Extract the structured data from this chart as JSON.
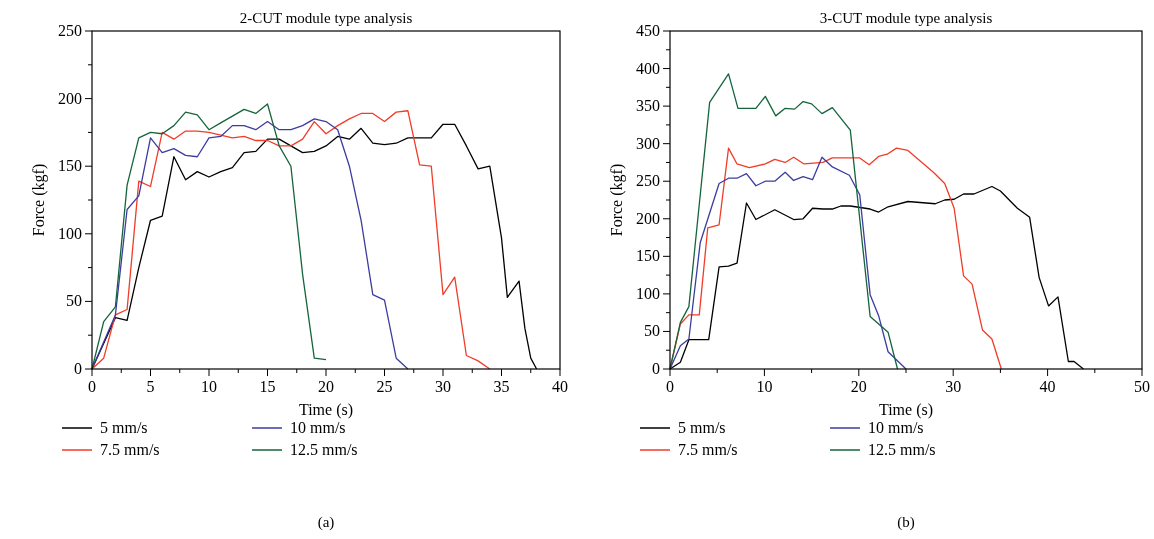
{
  "chart_data": [
    {
      "type": "line",
      "title": "2-CUT module type analysis",
      "xlabel": "Time (s)",
      "ylabel": "Force (kgf)",
      "xlim": [
        0,
        40
      ],
      "ylim": [
        0,
        250
      ],
      "xticks": [
        0,
        {
          "value": 2.5,
          "label": null
        },
        5,
        {
          "value": 7.5,
          "label": null
        },
        10,
        {
          "value": 12.5,
          "label": null
        },
        15,
        {
          "value": 17.5,
          "label": null
        },
        20,
        {
          "value": 22.5,
          "label": null
        },
        25,
        {
          "value": 27.5,
          "label": null
        },
        30,
        {
          "value": 32.5,
          "label": null
        },
        35,
        {
          "value": 37.5,
          "label": null
        },
        40
      ],
      "yticks": [
        0,
        {
          "value": 25,
          "label": null
        },
        50,
        {
          "value": 75,
          "label": null
        },
        100,
        {
          "value": 125,
          "label": null
        },
        150,
        {
          "value": 175,
          "label": null
        },
        200,
        {
          "value": 225,
          "label": null
        },
        250
      ],
      "grid": false,
      "legend": "bottom",
      "marker": "none",
      "line_style": "solid",
      "annotations": [
        "(a)"
      ],
      "series": [
        {
          "name": "5 mm/s",
          "color": "#000000",
          "x": [
            0,
            2,
            3,
            4,
            5,
            6,
            7,
            8,
            9,
            10,
            11,
            12,
            13,
            14,
            15,
            16,
            17,
            18,
            19,
            20,
            21,
            22,
            23,
            24,
            25,
            26,
            27,
            28,
            29,
            30,
            31,
            32,
            33,
            34,
            35,
            35.5,
            36.5,
            37,
            37.5,
            38
          ],
          "values": [
            0,
            38,
            36,
            75,
            110,
            113,
            157,
            140,
            146,
            142,
            146,
            149,
            160,
            161,
            170,
            170,
            165,
            160,
            161,
            165,
            172,
            170,
            178,
            167,
            166,
            167,
            171,
            171,
            171,
            181,
            181,
            165,
            148,
            150,
            97,
            53,
            65,
            30,
            8,
            0
          ]
        },
        {
          "name": "7.5 mm/s",
          "color": "#f03c28",
          "x": [
            0,
            1,
            2,
            3,
            4,
            5,
            6,
            7,
            8,
            9,
            10,
            11,
            12,
            13,
            14,
            15,
            16,
            17,
            18,
            19,
            20,
            21,
            22,
            23,
            24,
            25,
            26,
            27,
            28,
            29,
            30,
            31,
            32,
            33,
            34
          ],
          "values": [
            0,
            8,
            40,
            44,
            139,
            135,
            175,
            170,
            176,
            176,
            175,
            173,
            171,
            172,
            169,
            169,
            165,
            165,
            170,
            183,
            174,
            180,
            185,
            189,
            189,
            183,
            190,
            191,
            151,
            150,
            55,
            68,
            10,
            6,
            0
          ]
        },
        {
          "name": "10 mm/s",
          "color": "#3c3ca0",
          "x": [
            0,
            1,
            2,
            3,
            4,
            5,
            6,
            7,
            8,
            9,
            10,
            11,
            12,
            13,
            14,
            15,
            16,
            17,
            18,
            19,
            20,
            21,
            22,
            23,
            24,
            25,
            26,
            27
          ],
          "values": [
            0,
            20,
            40,
            118,
            128,
            171,
            160,
            163,
            158,
            157,
            171,
            172,
            180,
            180,
            177,
            183,
            177,
            177,
            180,
            185,
            183,
            177,
            150,
            110,
            55,
            51,
            8,
            0
          ]
        },
        {
          "name": "12.5 mm/s",
          "color": "#14643c",
          "x": [
            0,
            1,
            2,
            3,
            4,
            5,
            6,
            7,
            8,
            9,
            10,
            11,
            12,
            13,
            14,
            15,
            16,
            17,
            18,
            19,
            20
          ],
          "values": [
            0,
            35,
            46,
            136,
            171,
            175,
            174,
            180,
            190,
            188,
            177,
            182,
            187,
            192,
            189,
            196,
            165,
            150,
            70,
            8,
            7
          ]
        }
      ]
    },
    {
      "type": "line",
      "title": "3-CUT module type analysis",
      "xlabel": "Time (s)",
      "ylabel": "Force (kgf)",
      "xlim": [
        0,
        50
      ],
      "ylim": [
        0,
        450
      ],
      "xticks": [
        0,
        {
          "value": 5,
          "label": null
        },
        10,
        {
          "value": 15,
          "label": null
        },
        20,
        {
          "value": 25,
          "label": null
        },
        30,
        {
          "value": 35,
          "label": null
        },
        40,
        {
          "value": 45,
          "label": null
        },
        50
      ],
      "yticks": [
        0,
        {
          "value": 25,
          "label": null
        },
        50,
        {
          "value": 75,
          "label": null
        },
        100,
        {
          "value": 125,
          "label": null
        },
        150,
        {
          "value": 175,
          "label": null
        },
        200,
        {
          "value": 225,
          "label": null
        },
        250,
        {
          "value": 275,
          "label": null
        },
        300,
        {
          "value": 325,
          "label": null
        },
        350,
        {
          "value": 375,
          "label": null
        },
        400,
        {
          "value": 425,
          "label": null
        },
        450
      ],
      "grid": false,
      "legend": "bottom",
      "marker": "none",
      "line_style": "solid",
      "annotations": [
        "(b)"
      ],
      "series": [
        {
          "name": "5 mm/s",
          "color": "#000000",
          "x": [
            0,
            1.1,
            2,
            4.1,
            5.2,
            6.2,
            7.1,
            8.1,
            9.1,
            11.1,
            13.1,
            14.1,
            15.1,
            16.2,
            17.2,
            18.1,
            19.1,
            21.2,
            22.1,
            23.1,
            25.2,
            28.1,
            29.1,
            30.1,
            31.1,
            32.2,
            34.1,
            35,
            36.8,
            38.1,
            39.1,
            40.1,
            41.1,
            42.2,
            42.8,
            43.8
          ],
          "values": [
            0,
            9,
            39,
            39,
            136,
            137,
            141,
            221,
            199,
            212,
            199,
            200,
            214,
            213,
            213,
            217,
            217,
            213,
            209,
            216,
            223,
            220,
            225,
            226,
            233,
            233,
            243,
            237,
            214,
            202,
            122,
            84,
            96,
            10,
            10,
            0
          ]
        },
        {
          "name": "7.5 mm/s",
          "color": "#f03c28",
          "x": [
            0,
            1.1,
            2,
            3.1,
            4,
            5.2,
            6.2,
            7.1,
            8.4,
            10.1,
            11.1,
            12.2,
            13.1,
            14.2,
            16.2,
            17.2,
            20.1,
            21.1,
            22.1,
            23,
            24,
            25.2,
            27.9,
            29.1,
            30.1,
            31.1,
            32,
            33.1,
            34.1,
            35.1
          ],
          "values": [
            0,
            60,
            72,
            72,
            188,
            192,
            294,
            273,
            268,
            273,
            279,
            275,
            282,
            273,
            275,
            281,
            281,
            272,
            283,
            286,
            294,
            291,
            262,
            247,
            214,
            124,
            113,
            52,
            40,
            0
          ]
        },
        {
          "name": "10 mm/s",
          "color": "#3c3ca0",
          "x": [
            0,
            1.1,
            2,
            3.2,
            5.2,
            6.2,
            7.1,
            8.1,
            9.1,
            10.1,
            11.1,
            12.2,
            13.1,
            14.1,
            15.1,
            16.1,
            17.2,
            19,
            20.1,
            21.2,
            22.1,
            23.1,
            25
          ],
          "values": [
            0,
            31,
            40,
            168,
            247,
            254,
            254,
            260,
            244,
            250,
            250,
            262,
            251,
            256,
            252,
            282,
            269,
            258,
            232,
            99,
            71,
            23,
            0
          ]
        },
        {
          "name": "12.5 mm/s",
          "color": "#14643c",
          "x": [
            0,
            1.1,
            2,
            4.2,
            6.2,
            7.2,
            9.1,
            10.1,
            11.2,
            12.2,
            13.2,
            14.1,
            15,
            16.1,
            17.2,
            19.1,
            21.2,
            23.1,
            24.1
          ],
          "values": [
            0,
            62,
            83,
            355,
            393,
            347,
            347,
            363,
            337,
            347,
            346,
            356,
            353,
            340,
            348,
            318,
            70,
            49,
            0
          ]
        }
      ]
    }
  ]
}
